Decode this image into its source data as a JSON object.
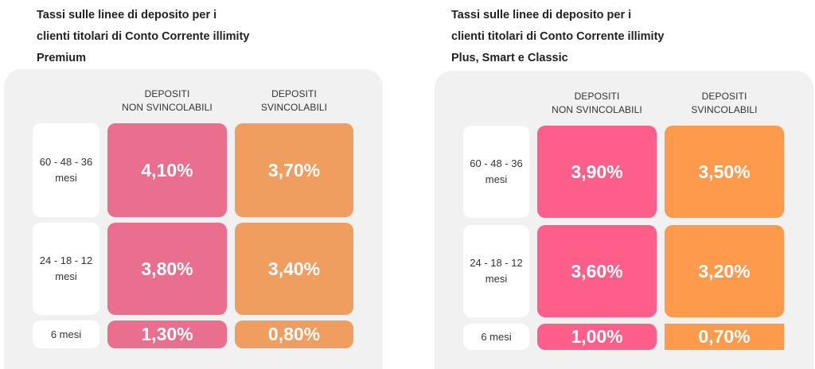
{
  "colors": {
    "premium_non_svincolabili": "#ea6f8e",
    "premium_svincolabili": "#ef9e5f",
    "standard_non_svincolabili": "#fe5e8a",
    "standard_svincolabili": "#fd9a4c",
    "card_background": "#f1f1f1"
  },
  "left": {
    "title_lines": [
      "Tassi sulle linee di deposito per i",
      "clienti titolari di Conto Corrente illimity",
      "Premium"
    ],
    "headers": {
      "non_svincolabili": [
        "DEPOSITI",
        "NON SVINCOLABILI"
      ],
      "svincolabili": [
        "DEPOSITI",
        "SVINCOLABILI"
      ]
    },
    "rows": [
      {
        "label_lines": [
          "60 - 48 - 36",
          "mesi"
        ],
        "non_svincolabili": "4,10%",
        "svincolabili": "3,70%"
      },
      {
        "label_lines": [
          "24 - 18 - 12",
          "mesi"
        ],
        "non_svincolabili": "3,80%",
        "svincolabili": "3,40%"
      },
      {
        "label_lines": [
          "6 mesi"
        ],
        "non_svincolabili": "1,30%",
        "svincolabili": "0,80%"
      }
    ]
  },
  "right": {
    "title_lines": [
      "Tassi sulle linee di deposito per i",
      "clienti titolari di Conto Corrente illimity",
      "Plus, Smart e Classic"
    ],
    "headers": {
      "non_svincolabili": [
        "DEPOSITI",
        "NON SVINCOLABILI"
      ],
      "svincolabili": [
        "DEPOSITI",
        "SVINCOLABILI"
      ]
    },
    "rows": [
      {
        "label_lines": [
          "60 - 48 - 36",
          "mesi"
        ],
        "non_svincolabili": "3,90%",
        "svincolabili": "3,50%"
      },
      {
        "label_lines": [
          "24 - 18 - 12",
          "mesi"
        ],
        "non_svincolabili": "3,60%",
        "svincolabili": "3,20%"
      },
      {
        "label_lines": [
          "6 mesi"
        ],
        "non_svincolabili": "1,00%",
        "svincolabili": "0,70%"
      }
    ]
  }
}
